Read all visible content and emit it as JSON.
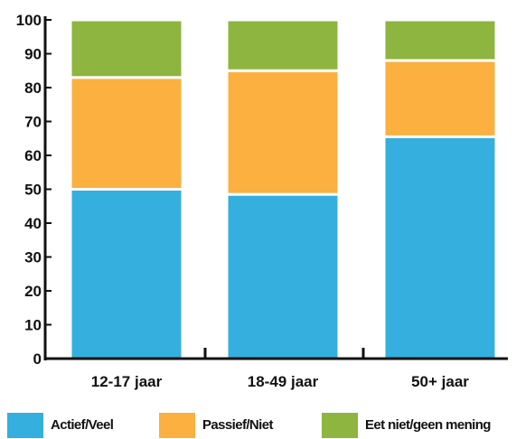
{
  "chart_data": {
    "type": "bar",
    "stacked": true,
    "categories": [
      "12-17 jaar",
      "18-49 jaar",
      "50+ jaar"
    ],
    "series": [
      {
        "name": "Actief/Veel",
        "color": "#35afdd",
        "values": [
          50,
          48.5,
          65.5
        ]
      },
      {
        "name": "Passief/Niet",
        "color": "#fbb040",
        "values": [
          33,
          36.5,
          22.5
        ]
      },
      {
        "name": "Eet niet/geen mening",
        "color": "#8db53f",
        "values": [
          17,
          15,
          12
        ]
      }
    ],
    "ylim": [
      0,
      100
    ],
    "yticks": [
      0,
      10,
      20,
      30,
      40,
      50,
      60,
      70,
      80,
      90,
      100
    ],
    "title": "",
    "xlabel": "",
    "ylabel": "",
    "grid": false,
    "legend_position": "bottom"
  }
}
